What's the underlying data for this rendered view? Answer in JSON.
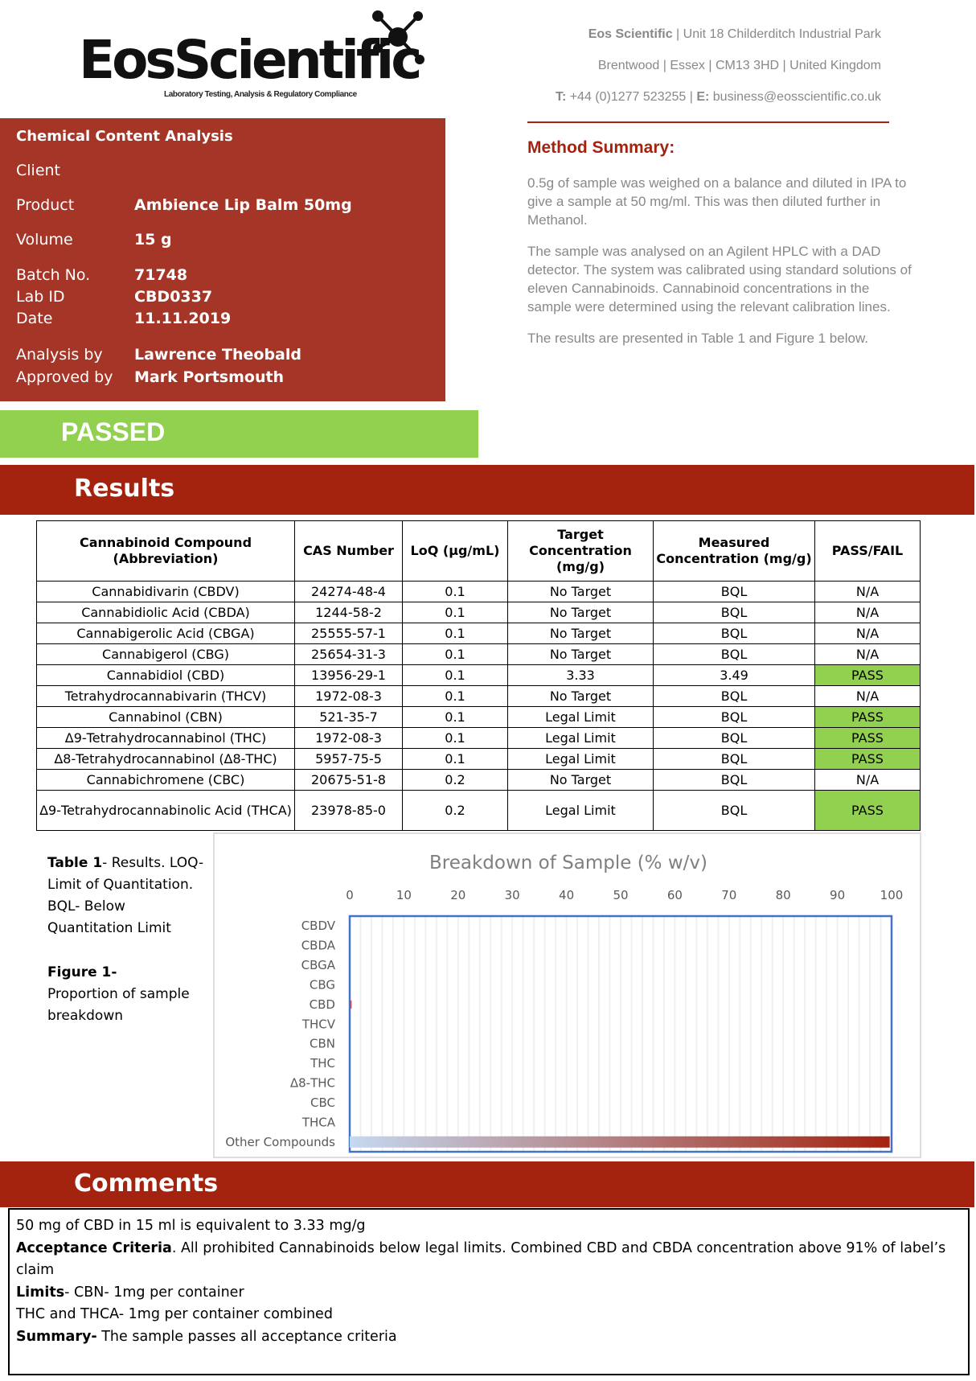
{
  "header": {
    "logo_text": "EosScientific",
    "logo_tagline": "Laboratory Testing, Analysis & Regulatory Compliance",
    "company": "Eos Scientific",
    "address_line1": " | Unit 18 Childerditch Industrial Park",
    "address_line2": "Brentwood | Essex | CM13 3HD | United Kingdom",
    "phone_label": "T:",
    "phone": " +44 (0)1277 523255 | ",
    "email_label": "E:",
    "email": " business@eosscientific.co.uk"
  },
  "info": {
    "title": "Chemical Content Analysis",
    "client_label": "Client",
    "client": "",
    "product_label": "Product",
    "product": "Ambience Lip Balm 50mg",
    "volume_label": "Volume",
    "volume": "15 g",
    "batch_label": "Batch No.",
    "batch": "71748",
    "labid_label": "Lab ID",
    "labid": "CBD0337",
    "date_label": "Date",
    "date": "11.11.2019",
    "analysis_label": "Analysis by",
    "analysis": "Lawrence Theobald",
    "approved_label": "Approved by",
    "approved": "Mark Portsmouth"
  },
  "method": {
    "title": "Method Summary:",
    "p1": "0.5g of sample was weighed on a balance and diluted in IPA to give a sample at 50 mg/ml. This was then diluted further in Methanol.",
    "p2": "The sample was analysed on an Agilent HPLC with a DAD detector. The system was calibrated using standard solutions of eleven Cannabinoids. Cannabinoid concentrations in the sample were determined using the relevant calibration lines.",
    "p3": "The results are presented in Table 1 and Figure 1 below."
  },
  "status": "PASSED",
  "results_title": "Results",
  "table": {
    "headers": [
      "Cannabinoid Compound (Abbreviation)",
      "CAS Number",
      "LoQ (µg/mL)",
      "Target Concentration (mg/g)",
      "Measured Concentration (mg/g)",
      "PASS/FAIL"
    ],
    "rows": [
      [
        "Cannabidivarin (CBDV)",
        "24274-48-4",
        "0.1",
        "No Target",
        "BQL",
        "N/A"
      ],
      [
        "Cannabidiolic Acid (CBDA)",
        "1244-58-2",
        "0.1",
        "No Target",
        "BQL",
        "N/A"
      ],
      [
        "Cannabigerolic Acid (CBGA)",
        "25555-57-1",
        "0.1",
        "No Target",
        "BQL",
        "N/A"
      ],
      [
        "Cannabigerol (CBG)",
        "25654-31-3",
        "0.1",
        "No Target",
        "BQL",
        "N/A"
      ],
      [
        "Cannabidiol (CBD)",
        "13956-29-1",
        "0.1",
        "3.33",
        "3.49",
        "PASS"
      ],
      [
        "Tetrahydrocannabivarin (THCV)",
        "1972-08-3",
        "0.1",
        "No Target",
        "BQL",
        "N/A"
      ],
      [
        "Cannabinol (CBN)",
        "521-35-7",
        "0.1",
        "Legal Limit",
        "BQL",
        "PASS"
      ],
      [
        "Δ9-Tetrahydrocannabinol (THC)",
        "1972-08-3",
        "0.1",
        "Legal Limit",
        "BQL",
        "PASS"
      ],
      [
        "Δ8-Tetrahydrocannabinol (Δ8-THC)",
        "5957-75-5",
        "0.1",
        "Legal Limit",
        "BQL",
        "PASS"
      ],
      [
        "Cannabichromene (CBC)",
        "20675-51-8",
        "0.2",
        "No Target",
        "BQL",
        "N/A"
      ],
      [
        "Δ9-Tetrahydrocannabinolic Acid (THCA)",
        "23978-85-0",
        "0.2",
        "Legal Limit",
        "BQL",
        "PASS"
      ]
    ],
    "pass_color": "#92d050"
  },
  "caption": {
    "table_label": "Table 1",
    "table_text": "- Results. LOQ-Limit of Quantitation. BQL- Below Quantitation Limit",
    "figure_label": "Figure 1-",
    "figure_text": "Proportion of sample breakdown"
  },
  "chart_data": {
    "type": "bar",
    "orientation": "horizontal",
    "title": "Breakdown of Sample (% w/v)",
    "categories": [
      "CBDV",
      "CBDA",
      "CBGA",
      "CBG",
      "CBD",
      "THCV",
      "CBN",
      "THC",
      "Δ8-THC",
      "CBC",
      "THCA",
      "Other Compounds"
    ],
    "values": [
      0,
      0,
      0,
      0,
      0.35,
      0,
      0,
      0,
      0,
      0,
      0,
      99.65
    ],
    "xlim": [
      0,
      100
    ],
    "xticks": [
      "0",
      "10",
      "20",
      "30",
      "40",
      "50",
      "60",
      "70",
      "80",
      "90",
      "100"
    ],
    "grid": true,
    "bar_color": "#c0504d",
    "gradient": [
      "#c5d9f1",
      "#a3230f"
    ]
  },
  "comments": {
    "title": "Comments",
    "line1": "50 mg of CBD in 15 ml is equivalent to 3.33 mg/g",
    "acc_label": "Acceptance Criteria",
    "acc_text": ". All prohibited Cannabinoids below legal limits. Combined CBD and CBDA concentration above 91% of label’s claim",
    "limits_label": "Limits",
    "limits_text": "- CBN- 1mg per container",
    "line4": "THC and THCA- 1mg per container combined",
    "summary_label": "Summary-",
    "summary_text": " The sample passes all acceptance criteria"
  }
}
